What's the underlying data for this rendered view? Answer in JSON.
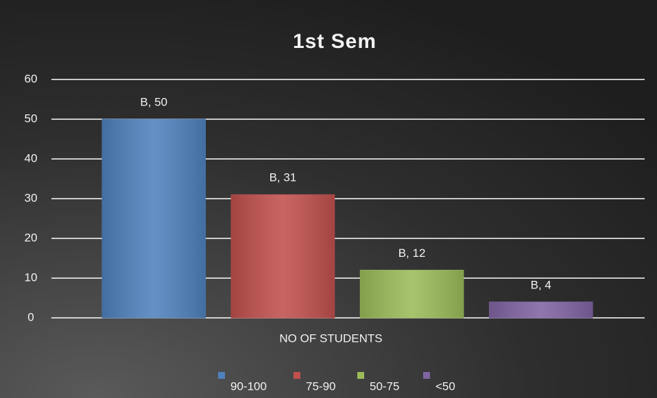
{
  "chart_data": {
    "type": "bar",
    "title": "1st Sem",
    "categories": [
      "NO OF STUDENTS"
    ],
    "series": [
      {
        "name": "90-100",
        "color": "#4f81bd",
        "values": [
          50
        ],
        "value_labels": [
          "B, 50"
        ]
      },
      {
        "name": "75-90",
        "color": "#c0504d",
        "values": [
          31
        ],
        "value_labels": [
          "B, 31"
        ]
      },
      {
        "name": "50-75",
        "color": "#9bbb59",
        "values": [
          12
        ],
        "value_labels": [
          "B, 12"
        ]
      },
      {
        "name": "<50",
        "color": "#8064a2",
        "values": [
          4
        ],
        "value_labels": [
          "B, 4"
        ]
      }
    ],
    "ylim": [
      0,
      60
    ],
    "yticks": [
      0,
      10,
      20,
      30,
      40,
      50,
      60
    ],
    "grid": true,
    "legend": "bottom"
  }
}
